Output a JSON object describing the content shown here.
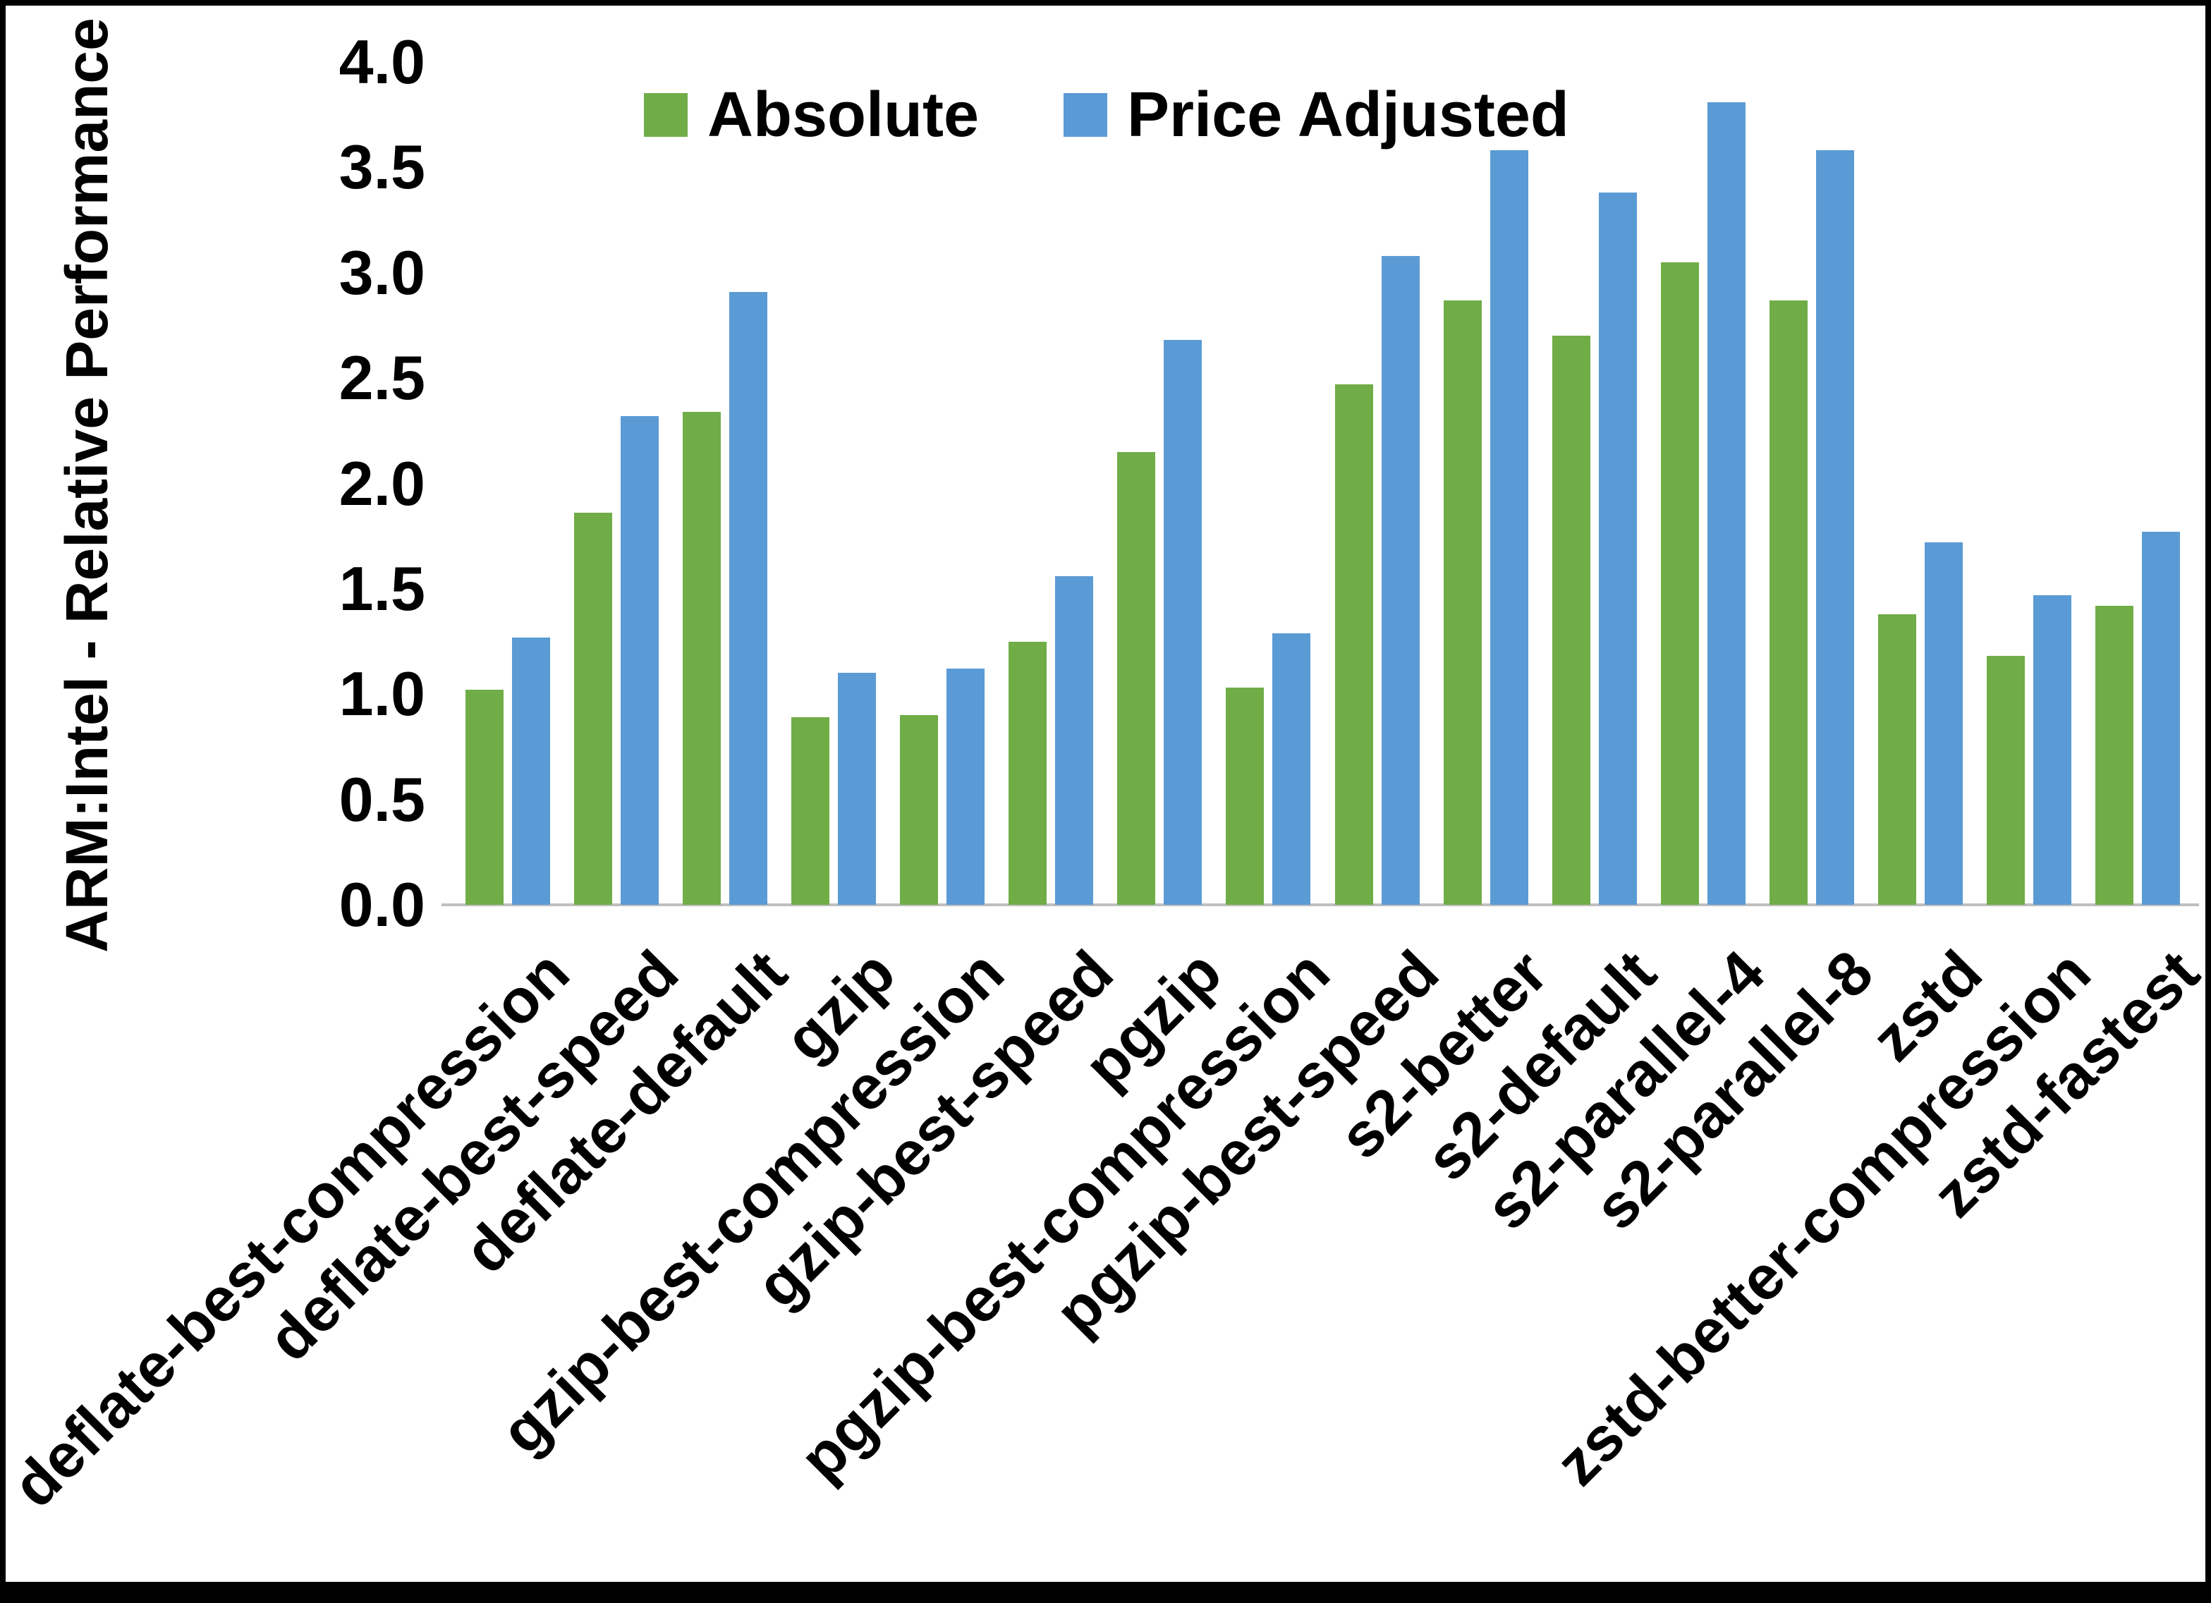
{
  "chart_data": {
    "type": "bar",
    "title": "",
    "ylabel": "ARM:Intel - Relative Performance",
    "xlabel": "",
    "ylim": [
      0.0,
      4.0
    ],
    "yticks": [
      "0.0",
      "0.5",
      "1.0",
      "1.5",
      "2.0",
      "2.5",
      "3.0",
      "3.5",
      "4.0"
    ],
    "grid": false,
    "legend_position": "top-center-inside",
    "background_color": "#FFFFFF",
    "frame_border_color": "#000000",
    "axis_line_color": "#BFBFBF",
    "categories": [
      "deflate-best-compression",
      "deflate-best-speed",
      "deflate-default",
      "gzip",
      "gzip-best-compression",
      "gzip-best-speed",
      "pgzip",
      "pgzip-best-compression",
      "pgzip-best-speed",
      "s2-better",
      "s2-default",
      "s2-parallel-4",
      "s2-parallel-8",
      "zstd",
      "zstd-better-compression",
      "zstd-fastest"
    ],
    "series": [
      {
        "name": "Absolute",
        "color": "#70AD47",
        "values": [
          1.02,
          1.86,
          2.34,
          0.89,
          0.9,
          1.25,
          2.15,
          1.03,
          2.47,
          2.87,
          2.7,
          3.05,
          2.87,
          1.38,
          1.18,
          1.42
        ]
      },
      {
        "name": "Price Adjusted",
        "color": "#5B9BD5",
        "values": [
          1.27,
          2.32,
          2.91,
          1.1,
          1.12,
          1.56,
          2.68,
          1.29,
          3.08,
          3.58,
          3.38,
          3.81,
          3.58,
          1.72,
          1.47,
          1.77
        ]
      }
    ]
  }
}
